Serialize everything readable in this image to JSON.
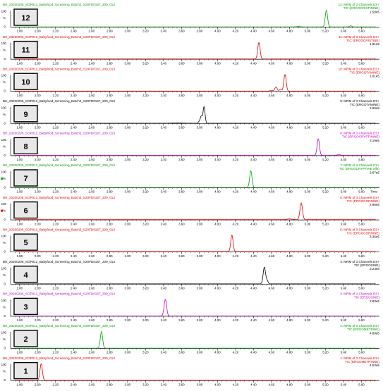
{
  "chart_data": {
    "type": "line",
    "x_axis": {
      "range": [
        1.7,
        5.8
      ],
      "ticks": [
        "1.80",
        "2.00",
        "2.20",
        "2.40",
        "2.60",
        "2.80",
        "3.00",
        "3.20",
        "3.40",
        "3.60",
        "3.80",
        "4.00",
        "4.20",
        "4.40",
        "4.60",
        "4.80",
        "5.00",
        "5.20",
        "5.40",
        "5.60"
      ],
      "label": "Time"
    },
    "y_axis": {
      "range": [
        0,
        100
      ],
      "ticks": [
        "100",
        "%",
        "0"
      ]
    },
    "grid": false,
    "panels": [
      {
        "number": "12",
        "color": "#00a000",
        "file": "BH_20200206_SOP012_Babyfood_Screening_Batch2_S20FD0167_209_013",
        "info": "12: MRM of 3 Channels ES+",
        "compound": "TIC (ERGOCRISTININE)",
        "intensity": "1.59e5",
        "show_time": false,
        "baseline": 0.0,
        "peaks": [
          [
            5.21,
            100,
            0.013
          ],
          [
            4.9,
            2,
            0.02
          ],
          [
            5.48,
            6,
            0.012
          ]
        ]
      },
      {
        "number": "11",
        "color": "#e00000",
        "file": "BH_20200206_SOP012_Babyfood_Screening_Batch2_S20FD0167_209_013",
        "info": "11: MRM of 3 Channels ES+",
        "compound": "TIC (ERGOCRISTINE)",
        "intensity": "1.51e5",
        "show_time": false,
        "baseline": 0.0,
        "peaks": [
          [
            4.46,
            100,
            0.013
          ]
        ]
      },
      {
        "number": "10",
        "color": "#e00000",
        "file": "BH_20200206_SOP012_Babyfood_Screening_Batch2_S20FD0167_209_013",
        "info": "10: MRM of 3 Channels ES+",
        "compound": "TIC (ERGOTAMINE)",
        "intensity": "1.61e5",
        "show_time": false,
        "baseline": 0.0,
        "peaks": [
          [
            4.75,
            100,
            0.013
          ],
          [
            4.65,
            25,
            0.013
          ],
          [
            4.7,
            10,
            0.012
          ],
          [
            4.6,
            5,
            0.015
          ]
        ]
      },
      {
        "number": "9",
        "color": "#000000",
        "file": "BH_20200206_SOP012_Babyfood_Screening_Batch2_S20FD0167_209_013",
        "info": "9: MRM of 3 Channels ES+",
        "compound": "TIC (ERGOTAMINE)",
        "intensity": "2.96e5",
        "show_time": false,
        "baseline": 0.0,
        "peaks": [
          [
            3.85,
            100,
            0.011
          ],
          [
            3.82,
            40,
            0.01
          ],
          [
            3.8,
            12,
            0.012
          ],
          [
            3.55,
            2,
            0.05
          ]
        ]
      },
      {
        "number": "8",
        "color": "#c000c0",
        "file": "BH_20200206_SOP012_Babyfood_Screening_Batch2_S20FD0167_209_013",
        "info": "8: MRM of 3 Channels ES+",
        "compound": "TIC (ERGOCRYPTININE)",
        "intensity": "3.19e5",
        "show_time": false,
        "baseline": 0.0,
        "peaks": [
          [
            5.12,
            100,
            0.013
          ],
          [
            5.35,
            6,
            0.015
          ]
        ]
      },
      {
        "number": "7",
        "color": "#00a000",
        "file": "BH_20200206_SOP012_Babyfood_Screening_Batch2_S20FD0167_209_013",
        "info": "7: MRM of 3 Channels ES+",
        "compound": "TIC (ERGOCRYPTINE alfa)",
        "intensity": "2.67e5",
        "show_time": true,
        "baseline": 0.0,
        "peaks": [
          [
            4.37,
            100,
            0.013
          ]
        ]
      },
      {
        "number": "6",
        "color": "#e00000",
        "file": "BH_20200206_SOP012_Babyfood_Screening_Batch2_S20FD0167_209_013",
        "info": "6: MRM of 3 Channels ES+",
        "compound": "TIC (ERGOCORNINE)",
        "intensity": "2.96e5",
        "show_time": false,
        "baseline": 0.0,
        "peaks": [
          [
            4.93,
            100,
            0.014
          ],
          [
            4.8,
            4,
            0.03
          ]
        ]
      },
      {
        "number": "5",
        "color": "#e00000",
        "file": "BH_20200206_SOP012_Babyfood_Screening_Batch2_S20FD0167_209_013",
        "info": "5: MRM of 3 Channels ES+",
        "compound": "TIC (ERGOCORNINE)",
        "intensity": "3.36e5",
        "show_time": false,
        "baseline": 0.0,
        "peaks": [
          [
            4.16,
            100,
            0.013
          ]
        ]
      },
      {
        "number": "4",
        "color": "#000000",
        "file": "BH_20200206_SOP012_Babyfood_Screening_Batch2_S20FD0167_209_013",
        "info": "4: MRM of 3 Channels ES+",
        "compound": "TIC (ERGOSINE)",
        "intensity": "3.24e5",
        "show_time": false,
        "baseline": 0.0,
        "peaks": [
          [
            4.52,
            100,
            0.013
          ],
          [
            4.55,
            20,
            0.012
          ]
        ]
      },
      {
        "number": "3",
        "color": "#c000c0",
        "file": "BH_20200206_SOP012_Babyfood_Screening_Batch2_S20FD0167_209_013",
        "info": "3: MRM of 3 Channels ES+",
        "compound": "TIC (ERGOSINE)",
        "intensity": "2.83e5",
        "show_time": false,
        "baseline": 0.0,
        "peaks": [
          [
            3.42,
            100,
            0.014
          ]
        ]
      },
      {
        "number": "2",
        "color": "#00a000",
        "file": "BH_20200206_SOP012_Babyfood_Screening_Batch2_S20FD0167_209_013",
        "info": "2: MRM of 3 Channels ES+",
        "compound": "TIC (ERGOMETRINE)",
        "intensity": "4.89e5",
        "show_time": false,
        "baseline": 0.0,
        "peaks": [
          [
            2.71,
            100,
            0.013
          ]
        ]
      },
      {
        "number": "1",
        "color": "#e00000",
        "file": "BH_20200206_SOP012_Babyfood_Screening_Batch2_S20FD0167_209_013",
        "info": "1: MRM of 3 Channels ES+",
        "compound": "TIC (ERGOMETRINNE)",
        "intensity": "4.53e5",
        "show_time": false,
        "baseline": 0.0,
        "peaks": [
          [
            2.04,
            100,
            0.013
          ]
        ]
      }
    ]
  }
}
